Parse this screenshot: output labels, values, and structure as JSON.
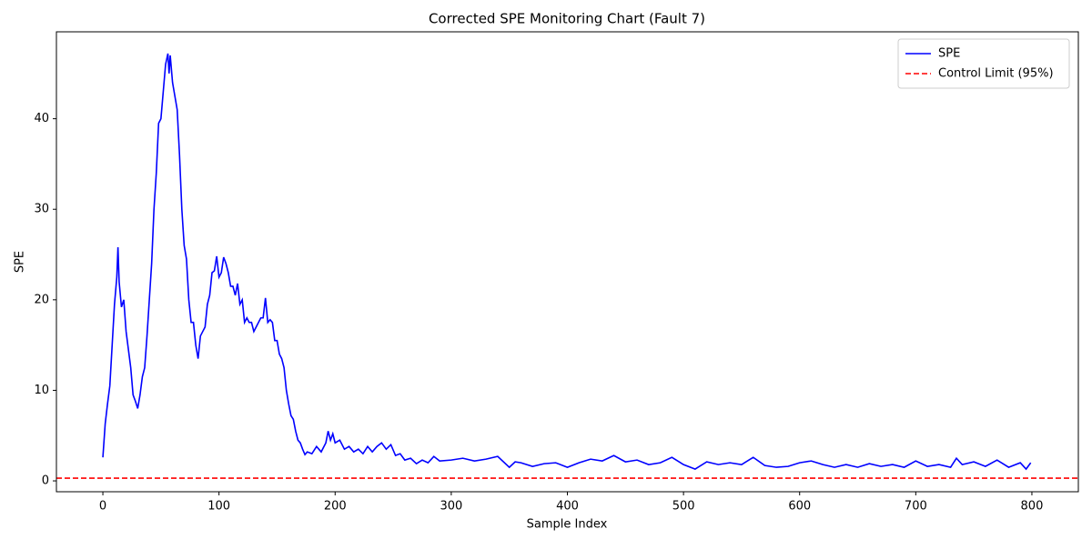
{
  "chart_data": {
    "type": "line",
    "title": "Corrected SPE Monitoring Chart (Fault 7)",
    "x_label": "Sample Index",
    "y_label": "SPE",
    "x": [
      0,
      2,
      4,
      6,
      8,
      10,
      12,
      13,
      14,
      16,
      18,
      20,
      22,
      24,
      26,
      28,
      30,
      32,
      34,
      36,
      38,
      40,
      42,
      44,
      46,
      48,
      50,
      52,
      54,
      56,
      57,
      58,
      60,
      62,
      64,
      66,
      68,
      70,
      72,
      74,
      76,
      78,
      80,
      82,
      84,
      86,
      88,
      90,
      92,
      94,
      96,
      98,
      100,
      102,
      104,
      106,
      108,
      110,
      112,
      114,
      116,
      118,
      120,
      122,
      124,
      126,
      128,
      130,
      132,
      134,
      136,
      138,
      140,
      142,
      144,
      146,
      148,
      150,
      152,
      154,
      156,
      158,
      160,
      162,
      164,
      166,
      168,
      170,
      172,
      174,
      176,
      180,
      184,
      188,
      192,
      194,
      196,
      198,
      200,
      204,
      208,
      212,
      216,
      220,
      224,
      228,
      232,
      236,
      240,
      244,
      248,
      252,
      256,
      260,
      265,
      270,
      275,
      280,
      285,
      290,
      300,
      310,
      320,
      330,
      340,
      350,
      355,
      360,
      370,
      380,
      390,
      400,
      410,
      420,
      430,
      440,
      450,
      460,
      470,
      480,
      490,
      500,
      510,
      520,
      530,
      540,
      550,
      560,
      570,
      580,
      590,
      600,
      610,
      620,
      630,
      640,
      650,
      660,
      670,
      680,
      690,
      700,
      710,
      720,
      730,
      735,
      740,
      750,
      760,
      770,
      780,
      790,
      795,
      799
    ],
    "series": [
      {
        "name": "SPE",
        "color": "#0000ff",
        "values": [
          2.6,
          6.3,
          8.5,
          10.5,
          15,
          19.5,
          22.5,
          25.8,
          22,
          19.2,
          20,
          16.5,
          14.5,
          12.5,
          9.5,
          8.8,
          8.0,
          9.5,
          11.5,
          12.5,
          16,
          20,
          24,
          30,
          34,
          39.5,
          40,
          43,
          46,
          47.2,
          45,
          47,
          44,
          42.5,
          41,
          36,
          30,
          26,
          24.5,
          20,
          17.5,
          17.5,
          15,
          13.5,
          16,
          16.5,
          17,
          19.5,
          20.5,
          23,
          23.2,
          24.8,
          22.5,
          23,
          24.7,
          24,
          23,
          21.5,
          21.5,
          20.5,
          21.8,
          19.5,
          20,
          17.5,
          18,
          17.5,
          17.5,
          16.5,
          17,
          17.5,
          18,
          18,
          20.2,
          17.5,
          17.8,
          17.5,
          15.5,
          15.5,
          14,
          13.5,
          12.5,
          10,
          8.5,
          7.2,
          6.8,
          5.5,
          4.5,
          4.2,
          3.5,
          2.9,
          3.2,
          3.0,
          3.8,
          3.2,
          4.2,
          5.5,
          4.5,
          5.2,
          4.2,
          4.5,
          3.5,
          3.8,
          3.2,
          3.5,
          3.0,
          3.8,
          3.2,
          3.8,
          4.2,
          3.5,
          4.0,
          2.8,
          3.0,
          2.3,
          2.5,
          1.9,
          2.3,
          2.0,
          2.7,
          2.2,
          2.3,
          2.5,
          2.2,
          2.4,
          2.7,
          1.5,
          2.1,
          2.0,
          1.6,
          1.9,
          2.0,
          1.5,
          2.0,
          2.4,
          2.2,
          2.8,
          2.1,
          2.3,
          1.8,
          2.0,
          2.6,
          1.8,
          1.3,
          2.1,
          1.8,
          2.0,
          1.8,
          2.6,
          1.7,
          1.5,
          1.6,
          2.0,
          2.2,
          1.8,
          1.5,
          1.8,
          1.5,
          1.9,
          1.6,
          1.8,
          1.5,
          2.2,
          1.6,
          1.8,
          1.5,
          2.5,
          1.8,
          2.1,
          1.6,
          2.3,
          1.5,
          2.0,
          1.3,
          2.0
        ]
      }
    ],
    "hlines": [
      {
        "name": "Control Limit (95%)",
        "color": "#ff0000",
        "value": 0.3,
        "style": "dashed"
      }
    ],
    "xlim": [
      -40,
      840
    ],
    "xticks": [
      0,
      100,
      200,
      300,
      400,
      500,
      600,
      700,
      800
    ],
    "ylim": [
      -1.2,
      49.6
    ],
    "yticks": [
      0,
      10,
      20,
      30,
      40
    ],
    "legend": "upper right"
  }
}
